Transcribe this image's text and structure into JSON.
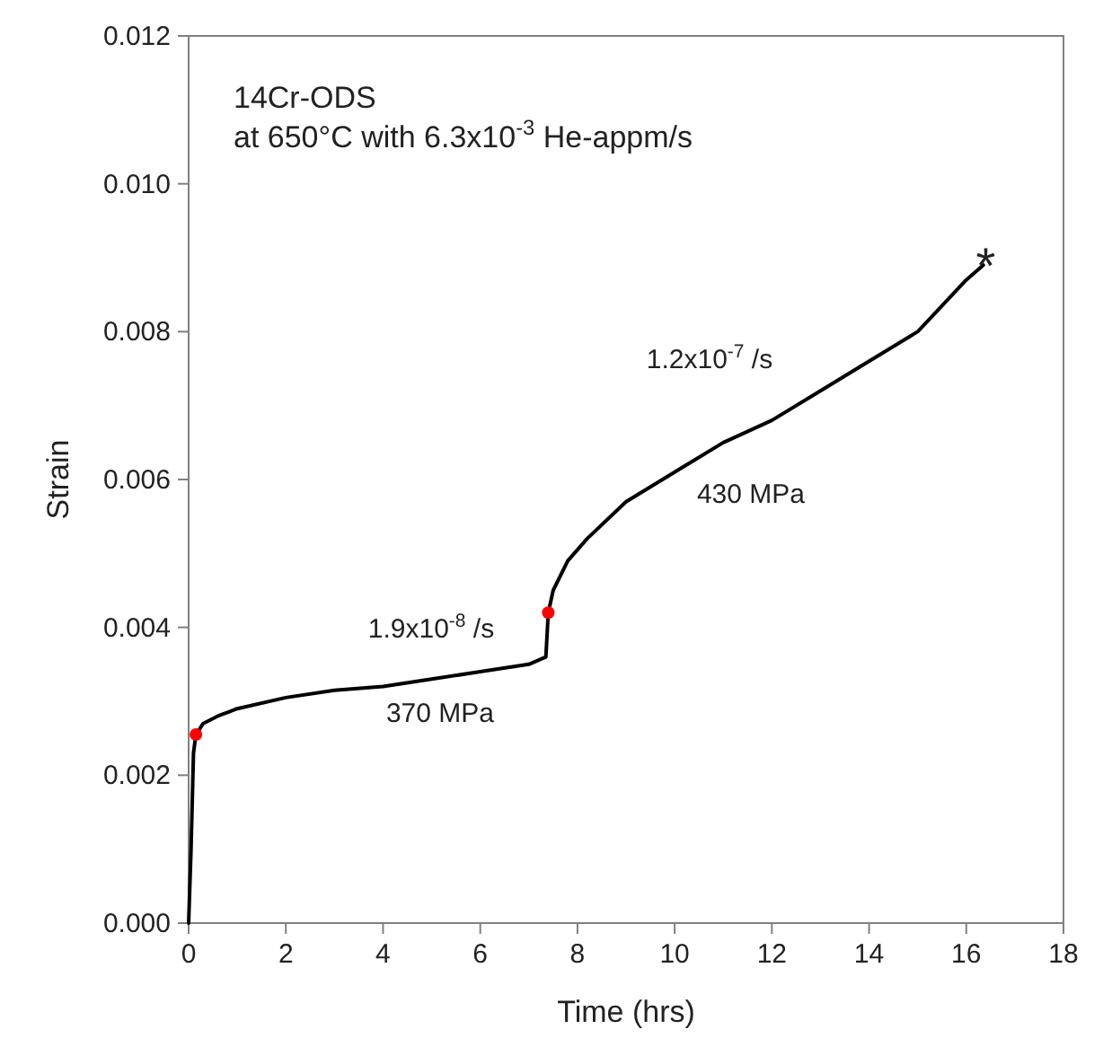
{
  "chart_data": {
    "type": "line",
    "title": "14Cr-ODS",
    "subtitle": "at 650°C with 6.3x10$^{-3}$ He-appm/s",
    "xlabel": "Time (hrs)",
    "ylabel": "Strain",
    "xlim": [
      0,
      18
    ],
    "xticks": [
      0,
      2,
      4,
      6,
      8,
      10,
      12,
      14,
      16,
      18
    ],
    "ylim": [
      0,
      0.012
    ],
    "yticks": [
      {
        "value": 0,
        "label": "0.000"
      },
      {
        "value": 0.002,
        "label": "0.002"
      },
      {
        "value": 0.004,
        "label": "0.004"
      },
      {
        "value": 0.006,
        "label": "0.006"
      },
      {
        "value": 0.008,
        "label": "0.008"
      },
      {
        "value": 0.01,
        "label": "0.010"
      },
      {
        "value": 0.012,
        "label": "0.012"
      }
    ],
    "grid": false,
    "series": [
      {
        "color": "#000000",
        "x": [
          0,
          0.05,
          0.1,
          0.15,
          0.3,
          0.6,
          1,
          2,
          3,
          4,
          5,
          6,
          7,
          7.35,
          7.4,
          7.5,
          7.8,
          8.2,
          9,
          10,
          11,
          12,
          13,
          14,
          15,
          16,
          16.35
        ],
        "values": [
          0,
          0.001,
          0.0023,
          0.00255,
          0.0027,
          0.0028,
          0.0029,
          0.00305,
          0.00315,
          0.0032,
          0.0033,
          0.0034,
          0.0035,
          0.0036,
          0.0042,
          0.0045,
          0.0049,
          0.0052,
          0.0057,
          0.0061,
          0.0065,
          0.0068,
          0.0072,
          0.0076,
          0.008,
          0.0087,
          0.0089
        ]
      },
      {
        "type": "scatter",
        "color": "#ff0000",
        "marker": "circle",
        "x": [
          0.15,
          7.4
        ],
        "values": [
          0.00255,
          0.0042
        ]
      }
    ],
    "annotations": [
      "1.9x10$^{-8}$ /s",
      "370 MPa",
      "1.2x10$^{-7}$ /s",
      "430 MPa",
      {
        "text": "*",
        "x": 16.4,
        "y": 0.009
      }
    ]
  }
}
